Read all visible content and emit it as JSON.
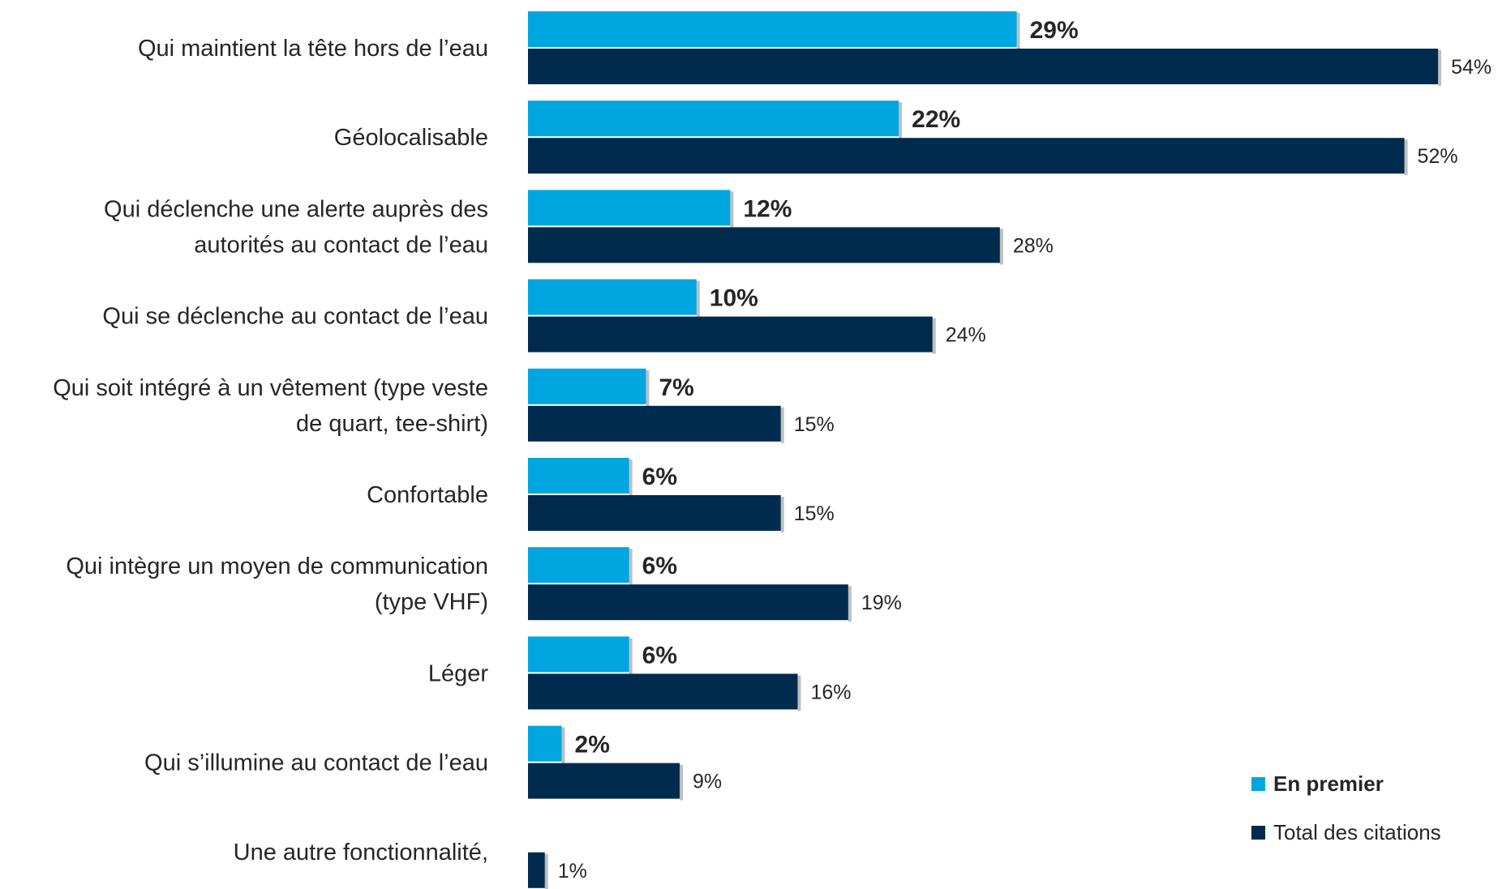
{
  "chart_data": {
    "type": "bar",
    "orientation": "horizontal",
    "categories": [
      "Qui maintient la tête hors de l’eau",
      "Géolocalisable",
      "Qui déclenche une alerte auprès des autorités au contact de l’eau",
      "Qui se déclenche au contact de l’eau",
      "Qui soit intégré à un vêtement (type veste de quart, tee-shirt)",
      "Confortable",
      "Qui intègre un moyen de communication (type VHF)",
      "Léger",
      "Qui s’illumine au contact de l’eau",
      "Une autre fonctionnalité,"
    ],
    "category_lines": [
      [
        "Qui maintient la tête hors de l’eau"
      ],
      [
        "Géolocalisable"
      ],
      [
        "Qui déclenche une alerte auprès des",
        "autorités au contact de l’eau"
      ],
      [
        "Qui se déclenche au contact de l’eau"
      ],
      [
        "Qui soit intégré à un vêtement (type veste",
        "de quart, tee-shirt)"
      ],
      [
        "Confortable"
      ],
      [
        "Qui intègre un moyen de communication",
        "(type VHF)"
      ],
      [
        "Léger"
      ],
      [
        "Qui s’illumine au contact de l’eau"
      ],
      [
        "Une autre fonctionnalité,"
      ]
    ],
    "series": [
      {
        "name": "En premier",
        "color": "#00A6E0",
        "values": [
          29,
          22,
          12,
          10,
          7,
          6,
          6,
          6,
          2,
          null
        ],
        "labels": [
          "29%",
          "22%",
          "12%",
          "10%",
          "7%",
          "6%",
          "6%",
          "6%",
          "2%",
          ""
        ]
      },
      {
        "name": "Total des citations",
        "color": "#002B4E",
        "values": [
          54,
          52,
          28,
          24,
          15,
          15,
          19,
          16,
          9,
          1
        ],
        "labels": [
          "54%",
          "52%",
          "28%",
          "24%",
          "15%",
          "15%",
          "19%",
          "16%",
          "9%",
          "1%"
        ]
      }
    ],
    "xlim": [
      0,
      54
    ],
    "grid": false,
    "legend_position": "bottom-right"
  }
}
